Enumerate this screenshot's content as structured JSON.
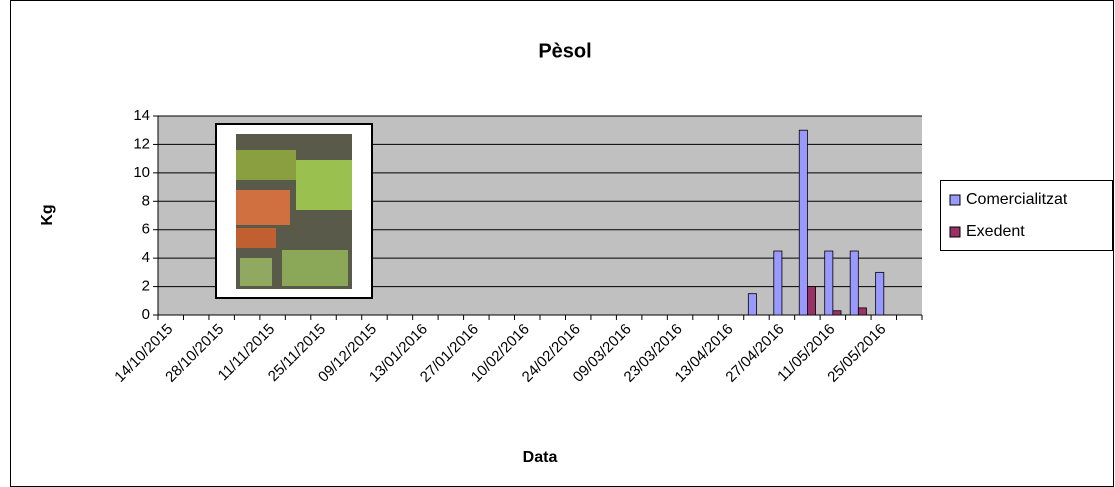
{
  "chart_data": {
    "type": "bar",
    "title": "Pèsol",
    "x_label": "Data",
    "y_label": "Kg",
    "categories": [
      "14/10/2015",
      null,
      "28/10/2015",
      null,
      "11/11/2015",
      null,
      "25/11/2015",
      null,
      "09/12/2015",
      null,
      "13/01/2016",
      null,
      "27/01/2016",
      null,
      "10/02/2016",
      null,
      "24/02/2016",
      null,
      "09/03/2016",
      null,
      "23/03/2016",
      null,
      "13/04/2016",
      null,
      "27/04/2016",
      null,
      "11/05/2016",
      null,
      "25/05/2016",
      null
    ],
    "series": [
      {
        "name": "Comercialitzat",
        "color": "#9999ff",
        "values": [
          null,
          null,
          null,
          null,
          null,
          null,
          null,
          null,
          null,
          null,
          null,
          null,
          null,
          null,
          null,
          null,
          null,
          null,
          null,
          null,
          null,
          null,
          null,
          1.5,
          4.5,
          13,
          4.5,
          4.5,
          3,
          null
        ]
      },
      {
        "name": "Exedent",
        "color": "#993366",
        "values": [
          null,
          null,
          null,
          null,
          null,
          null,
          null,
          null,
          null,
          null,
          null,
          null,
          null,
          null,
          null,
          null,
          null,
          null,
          null,
          null,
          null,
          null,
          null,
          null,
          null,
          2,
          0.3,
          0.5,
          null,
          null
        ]
      }
    ],
    "ylim": [
      0,
      14
    ],
    "yticks": [
      0,
      2,
      4,
      6,
      8,
      10,
      12,
      14
    ],
    "grid": true,
    "legend": "right",
    "plot_background": "#c0c0c0"
  }
}
